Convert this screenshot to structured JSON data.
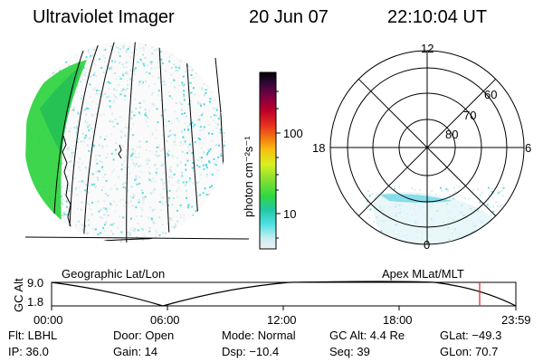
{
  "header": {
    "title": "Ultraviolet Imager",
    "date": "20 Jun 07",
    "time": "22:10:04 UT"
  },
  "colorbar": {
    "unit_label": "photon cm⁻²s⁻¹",
    "ticks": [
      "100",
      "10"
    ],
    "scale": "log"
  },
  "polar_plot": {
    "mlt_labels": {
      "top": "12",
      "right": "6",
      "bottom": "0",
      "left": "18"
    },
    "mlat_labels": [
      "60",
      "70",
      "80"
    ]
  },
  "panel_labels": {
    "geographic": "Geographic Lat/Lon",
    "apex": "Apex MLat/MLT"
  },
  "altitude_strip": {
    "axis_label": "GC Alt",
    "y_ticks": [
      "9.0",
      "1.8"
    ],
    "x_ticks": [
      "00:00",
      "06:00",
      "12:00",
      "18:00",
      "23:59"
    ],
    "marker_time": "22:10",
    "marker_color": "#e02020"
  },
  "footer": {
    "filter": "Flt: LBHL",
    "ip": "IP: 36.0",
    "door": "Door: Open",
    "gain": "Gain: 14",
    "mode": "Mode: Normal",
    "dsp": "Dsp:  −10.4",
    "gc_alt": "GC Alt: 4.4 Re",
    "seq": "Seq: 39",
    "glat": "GLat: −49.3",
    "glon": "GLon:  70.7"
  },
  "colors": {
    "background": "#ffffff",
    "aurora_green": "#2ed23e",
    "emission_cyan": "#4fe0e0",
    "grid": "#000000"
  }
}
